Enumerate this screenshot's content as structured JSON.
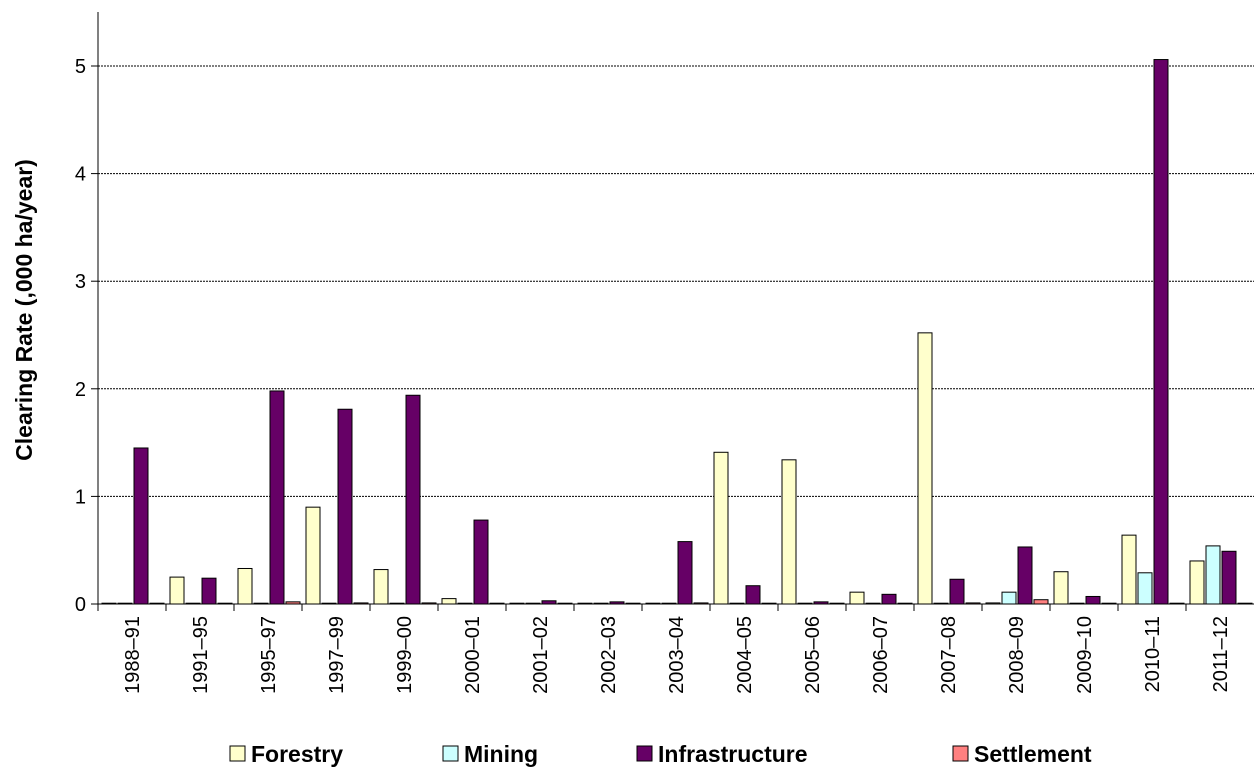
{
  "chart_data": {
    "type": "bar",
    "title": "",
    "xlabel": "",
    "ylabel": "Clearing Rate (,000 ha/year)",
    "ylim": [
      0,
      5.5
    ],
    "yticks": [
      "0",
      "1",
      "2",
      "3",
      "4",
      "5"
    ],
    "grid": true,
    "legend_position": "bottom",
    "categories": [
      "1988–91",
      "1991–95",
      "1995–97",
      "1997–99",
      "1999–00",
      "2000–01",
      "2001–02",
      "2002–03",
      "2003–04",
      "2004–05",
      "2005–06",
      "2006–07",
      "2007–08",
      "2008–09",
      "2009–10",
      "2010–11",
      "2011–12"
    ],
    "series": [
      {
        "name": "Forestry",
        "color": "#FFFFCC",
        "values": [
          0,
          0.25,
          0.33,
          0.9,
          0.32,
          0.05,
          0,
          0,
          0,
          1.41,
          1.34,
          0.11,
          2.52,
          0.01,
          0.3,
          0.64,
          0.4
        ]
      },
      {
        "name": "Mining",
        "color": "#CCFFFF",
        "values": [
          0,
          0,
          0,
          0,
          0,
          0,
          0,
          0,
          0,
          0,
          0,
          0,
          0,
          0.11,
          0,
          0.29,
          0.54
        ]
      },
      {
        "name": "Infrastructure",
        "color": "#660066",
        "values": [
          1.45,
          0.24,
          1.98,
          1.81,
          1.94,
          0.78,
          0.03,
          0.02,
          0.58,
          0.17,
          0.02,
          0.09,
          0.23,
          0.53,
          0.07,
          5.06,
          0.49
        ]
      },
      {
        "name": "Settlement",
        "color": "#FF8080",
        "values": [
          0,
          0,
          0.02,
          0.01,
          0.01,
          0,
          0,
          0,
          0.01,
          0,
          0,
          0,
          0.01,
          0.04,
          0,
          0,
          0
        ]
      }
    ]
  }
}
